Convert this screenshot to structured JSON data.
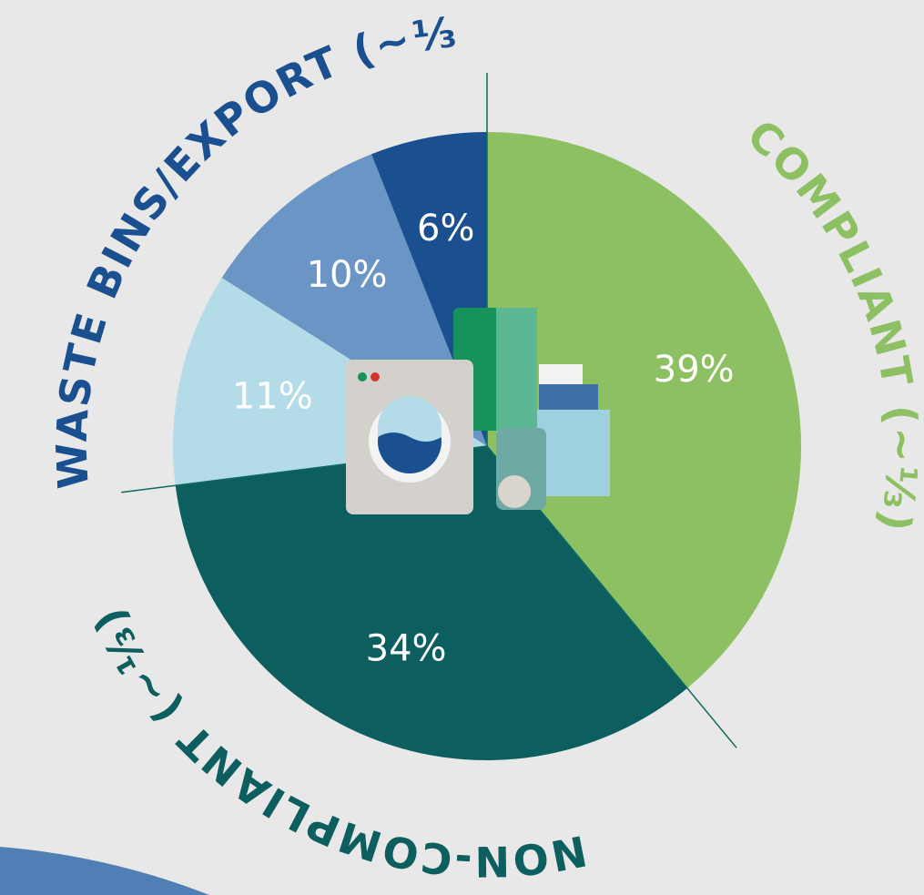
{
  "chart_data": {
    "type": "pie",
    "values": [
      39,
      34,
      11,
      10,
      6
    ],
    "value_labels": [
      "39%",
      "34%",
      "11%",
      "10%",
      "6%"
    ],
    "colors": [
      "#8dc063",
      "#0c5e5f",
      "#b3dbe8",
      "#6b95c4",
      "#1a4f90"
    ],
    "annotations": [
      {
        "text": "COMPLIANT (~⅓)",
        "color": "#8dc063"
      },
      {
        "text": "NON-COMPLIANT (~⅓)",
        "color": "#0c5e5f"
      },
      {
        "text": "WASTE BINS/EXPORT (~⅓)",
        "color": "#1a4f90"
      }
    ]
  }
}
